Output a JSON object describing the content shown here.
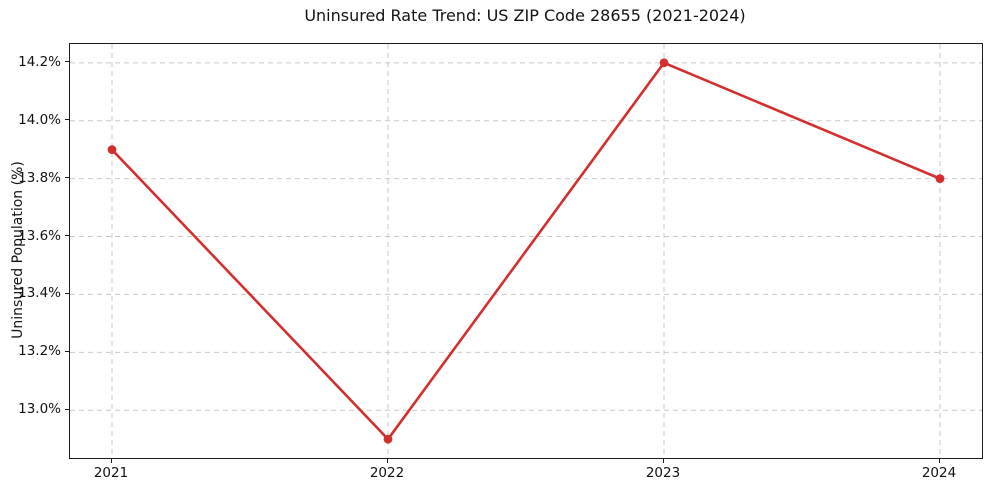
{
  "chart_data": {
    "type": "line",
    "title": "Uninsured Rate Trend: US ZIP Code 28655 (2021-2024)",
    "xlabel": "",
    "ylabel": "Uninsured Population (%)",
    "categories": [
      "2021",
      "2022",
      "2023",
      "2024"
    ],
    "values": [
      13.9,
      12.9,
      14.2,
      13.8
    ],
    "ytick_values": [
      13.0,
      13.2,
      13.4,
      13.6,
      13.8,
      14.0,
      14.2
    ],
    "ytick_labels": [
      "13.0%",
      "13.2%",
      "13.4%",
      "13.6%",
      "13.8%",
      "14.0%",
      "14.2%"
    ],
    "ylim": [
      12.835,
      14.265
    ],
    "grid": true,
    "grid_style": "dashed",
    "grid_color": "#c9c9c9",
    "line_color": "#d32f2f",
    "marker": "circle",
    "marker_color": "#d32f2f",
    "spine_color": "#1c1c1c",
    "legend": false
  }
}
